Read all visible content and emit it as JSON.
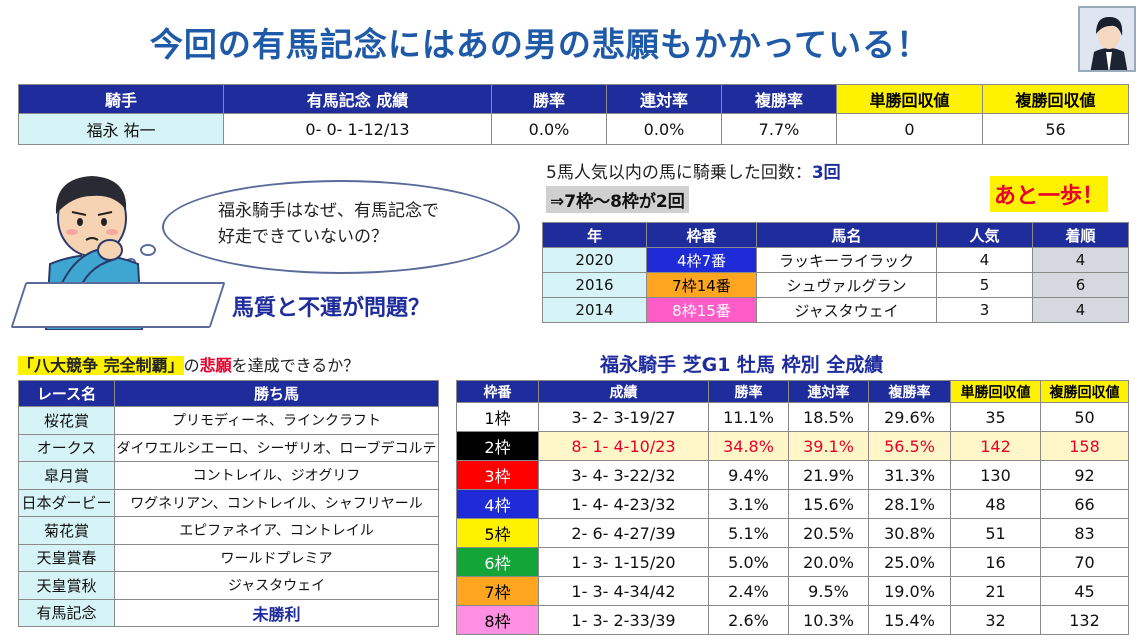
{
  "title": "今回の有馬記念にはあの男の悲願もかかっている！",
  "stats": {
    "headers": [
      "騎手",
      "有馬記念 成績",
      "勝率",
      "連対率",
      "複勝率",
      "単勝回収値",
      "複勝回収値"
    ],
    "row": [
      "福永 祐一",
      "0- 0- 1-12/13",
      "0.0%",
      "0.0%",
      "7.7%",
      "0",
      "56"
    ]
  },
  "bubble": {
    "line1": "福永騎手はなぜ、有馬記念で",
    "line2": "好走できていないの？"
  },
  "problem": "馬質と不運が問題？",
  "popular": {
    "line1_prefix": "5馬人気以内の馬に騎乗した回数：",
    "line1_value": "3回",
    "line2": "⇒7枠～8枠が2回",
    "ato": "あと一歩！"
  },
  "recent": {
    "headers": [
      "年",
      "枠番",
      "馬名",
      "人気",
      "着順"
    ],
    "rows": [
      {
        "year": "2020",
        "waku": "4枠7番",
        "horse": "ラッキーライラック",
        "pop": "4",
        "rank": "4",
        "color": "#1e2bd6",
        "text": "#ffffff"
      },
      {
        "year": "2016",
        "waku": "7枠14番",
        "horse": "シュヴァルグラン",
        "pop": "5",
        "rank": "6",
        "color": "#ffa51f",
        "text": "#000000"
      },
      {
        "year": "2014",
        "waku": "8枠15番",
        "horse": "ジャスタウェイ",
        "pop": "3",
        "rank": "4",
        "color": "#ff5cc8",
        "text": "#ffffff"
      }
    ]
  },
  "hakken": {
    "mark": "「八大競争 完全制覇」",
    "mid": "の",
    "red": "悲願",
    "tail": "を達成できるか？"
  },
  "races": {
    "headers": [
      "レース名",
      "勝ち馬"
    ],
    "rows": [
      {
        "race": "桜花賞",
        "winner": "プリモディーネ、ラインクラフト"
      },
      {
        "race": "オークス",
        "winner": "ダイワエルシエーロ、シーザリオ、ローブデコルテ"
      },
      {
        "race": "皐月賞",
        "winner": "コントレイル、ジオグリフ"
      },
      {
        "race": "日本ダービー",
        "winner": "ワグネリアン、コントレイル、シャフリヤール"
      },
      {
        "race": "菊花賞",
        "winner": "エピファネイア、コントレイル"
      },
      {
        "race": "天皇賞春",
        "winner": "ワールドプレミア"
      },
      {
        "race": "天皇賞秋",
        "winner": "ジャスタウェイ"
      },
      {
        "race": "有馬記念",
        "winner": "未勝利"
      }
    ]
  },
  "frame_title": "福永騎手 芝G1 牡馬 枠別 全成績",
  "frame": {
    "headers": [
      "枠番",
      "成績",
      "勝率",
      "連対率",
      "複勝率",
      "単勝回収値",
      "複勝回収値"
    ],
    "rows": [
      {
        "waku": "1枠",
        "rec": "3- 2- 3-19/27",
        "win": "11.1%",
        "ren": "18.5%",
        "fuku": "29.6%",
        "tan": "35",
        "fkv": "50",
        "color": "#ffffff",
        "text": "#000000"
      },
      {
        "waku": "2枠",
        "rec": "8- 1- 4-10/23",
        "win": "34.8%",
        "ren": "39.1%",
        "fuku": "56.5%",
        "tan": "142",
        "fkv": "158",
        "color": "#000000",
        "text": "#ffffff"
      },
      {
        "waku": "3枠",
        "rec": "3- 4- 3-22/32",
        "win": "9.4%",
        "ren": "21.9%",
        "fuku": "31.3%",
        "tan": "130",
        "fkv": "92",
        "color": "#ff0000",
        "text": "#ffffff"
      },
      {
        "waku": "4枠",
        "rec": "1- 4- 4-23/32",
        "win": "3.1%",
        "ren": "15.6%",
        "fuku": "28.1%",
        "tan": "48",
        "fkv": "66",
        "color": "#1e2bd6",
        "text": "#ffffff"
      },
      {
        "waku": "5枠",
        "rec": "2- 6- 4-27/39",
        "win": "5.1%",
        "ren": "20.5%",
        "fuku": "30.8%",
        "tan": "51",
        "fkv": "83",
        "color": "#fff200",
        "text": "#000000"
      },
      {
        "waku": "6枠",
        "rec": "1- 3- 1-15/20",
        "win": "5.0%",
        "ren": "20.0%",
        "fuku": "25.0%",
        "tan": "16",
        "fkv": "70",
        "color": "#13a538",
        "text": "#ffffff"
      },
      {
        "waku": "7枠",
        "rec": "1- 3- 4-34/42",
        "win": "2.4%",
        "ren": "9.5%",
        "fuku": "19.0%",
        "tan": "21",
        "fkv": "45",
        "color": "#ffa51f",
        "text": "#000000"
      },
      {
        "waku": "8枠",
        "rec": "1- 3- 2-33/39",
        "win": "2.6%",
        "ren": "10.3%",
        "fuku": "15.4%",
        "tan": "32",
        "fkv": "132",
        "color": "#ff8fe0",
        "text": "#000000"
      }
    ]
  },
  "colors": {
    "navy": "#1e2c9c",
    "yellow": "#fff200",
    "cyan": "#d6f4f7",
    "red": "#e8002b"
  }
}
